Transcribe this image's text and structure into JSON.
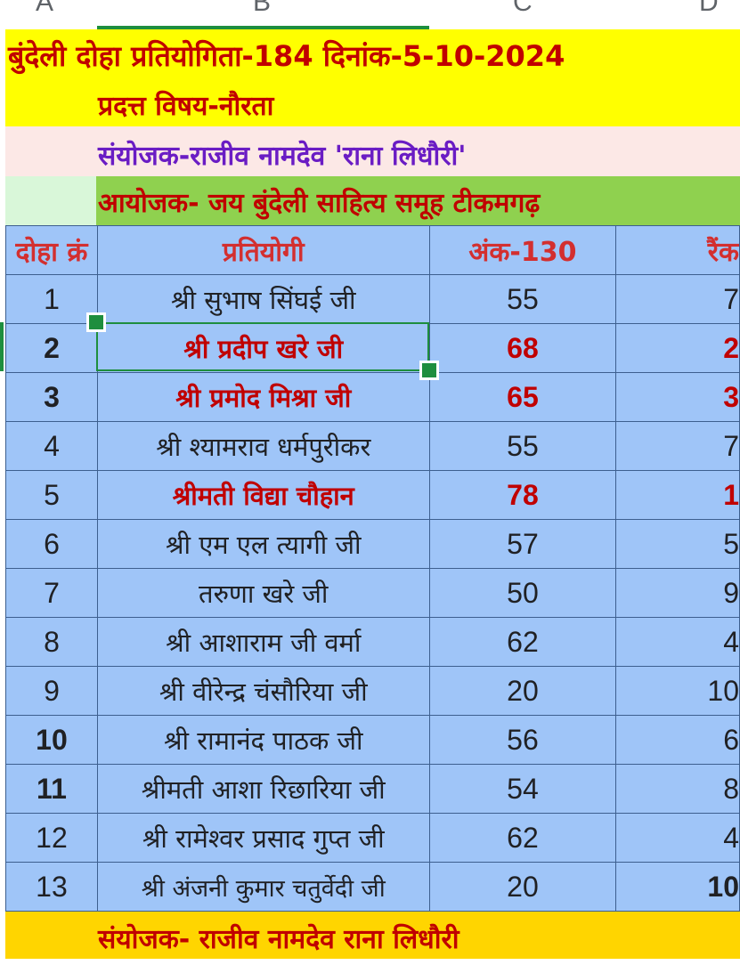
{
  "column_headers": [
    "A",
    "B",
    "C",
    "D"
  ],
  "title_line": "बुंदेली दोहा प्रतियोगिता-184 दिनांक-5-10-2024",
  "subject_line": "प्रदत्त विषय-नौरता",
  "convener_line": "संयोजक-राजीव नामदेव 'राना लिधौरी'",
  "organizer_line": "आयोजक- जय बुंदेली साहित्य समूह टीकमगढ़",
  "table": {
    "headers": {
      "serial": "दोहा क्रं",
      "participant": "प्रतियोगी",
      "score": "अंक-130",
      "rank": "रैंक"
    },
    "rows": [
      {
        "serial": "1",
        "participant": "श्री सुभाष सिंघई जी",
        "score": "55",
        "rank": "7"
      },
      {
        "serial": "2",
        "participant": "श्री प्रदीप खरे जी",
        "score": "68",
        "rank": "2"
      },
      {
        "serial": "3",
        "participant": "श्री प्रमोद मिश्रा जी",
        "score": "65",
        "rank": "3"
      },
      {
        "serial": "4",
        "participant": "श्री श्यामराव धर्मपुरीकर",
        "score": "55",
        "rank": "7"
      },
      {
        "serial": "5",
        "participant": "श्रीमती विद्या चौहान",
        "score": "78",
        "rank": "1"
      },
      {
        "serial": "6",
        "participant": "श्री एम एल त्यागी जी",
        "score": "57",
        "rank": "5"
      },
      {
        "serial": "7",
        "participant": "तरुणा खरे जी",
        "score": "50",
        "rank": "9"
      },
      {
        "serial": "8",
        "participant": "श्री आशाराम जी वर्मा",
        "score": "62",
        "rank": "4"
      },
      {
        "serial": "9",
        "participant": "श्री वीरेन्द्र चंसौरिया जी",
        "score": "20",
        "rank": "10"
      },
      {
        "serial": "10",
        "participant": "श्री रामानंद पाठक जी",
        "score": "56",
        "rank": "6"
      },
      {
        "serial": "11",
        "participant": "श्रीमती आशा रिछारिया जी",
        "score": "54",
        "rank": "8"
      },
      {
        "serial": "12",
        "participant": "श्री रामेश्वर प्रसाद गुप्त जी",
        "score": "62",
        "rank": "4"
      },
      {
        "serial": "13",
        "participant": "श्री अंजनी कुमार चतुर्वेदी जी",
        "score": "20",
        "rank": "10"
      }
    ]
  },
  "footer_line": "संयोजक- राजीव नामदेव राना लिधौरी",
  "colors": {
    "title_bg": "#ffff00",
    "convener_bg": "#fce8e6",
    "organizer_bg": "#8fd14f",
    "table_bg": "#9fc5f8",
    "footer_bg": "#ffd500",
    "highlight_text": "#c00000",
    "selection": "#1e8e3e"
  }
}
